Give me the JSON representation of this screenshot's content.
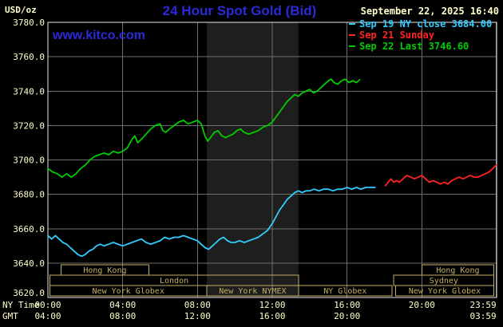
{
  "header": {
    "unit": "USD/oz",
    "title": "24 Hour Spot Gold (Bid)",
    "datetime": "September 22, 2025 16:40",
    "watermark": "www.kitco.com"
  },
  "legend": {
    "items": [
      {
        "label": "Sep 19 NY close 3684.00",
        "color": "#33ccff"
      },
      {
        "label": "Sep 21 Sunday",
        "color": "#ff2222"
      },
      {
        "label": "Sep 22 Last 3746.60",
        "color": "#00cc00"
      }
    ]
  },
  "colors": {
    "background": "#000000",
    "title": "#2a2ad8",
    "datetime_text": "#ffffcc",
    "axis_text": "#ffffcc",
    "grid": "#6f6f6f",
    "plot_border": "#e8e8e8",
    "band": "#1e1e1e",
    "session": "#c3af62"
  },
  "chart_data": {
    "type": "line",
    "title": "24 Hour Spot Gold (Bid)",
    "y_unit": "USD/oz",
    "xlim": [
      0,
      24
    ],
    "ylim": [
      3620,
      3780
    ],
    "y_gridline_step": 20,
    "x_gridline_step_hours": 4,
    "y_ticks": [
      3620,
      3640,
      3660,
      3680,
      3700,
      3720,
      3740,
      3760,
      3780
    ],
    "x_axis_row_labels": {
      "ny": "NY Time",
      "gmt": "GMT"
    },
    "x_ticks": [
      {
        "hour": 0,
        "ny": "00:00",
        "gmt": "04:00"
      },
      {
        "hour": 4,
        "ny": "04:00",
        "gmt": "08:00"
      },
      {
        "hour": 8,
        "ny": "08:00",
        "gmt": "12:00"
      },
      {
        "hour": 12,
        "ny": "12:00",
        "gmt": "16:00"
      },
      {
        "hour": 16,
        "ny": "16:00",
        "gmt": "20:00"
      },
      {
        "hour": 20,
        "ny": "20:00",
        "gmt": ""
      },
      {
        "hour": 23.983,
        "ny": "23:59",
        "gmt": "03:59",
        "anchor": "end"
      }
    ],
    "nymex_band_hours": [
      8.5,
      13.4
    ],
    "series": [
      {
        "id": "sep19",
        "name": "Sep 19 NY close",
        "close": 3684.0,
        "color": "#33ccff",
        "points": [
          [
            0,
            3656
          ],
          [
            0.2,
            3654
          ],
          [
            0.4,
            3656
          ],
          [
            0.6,
            3654
          ],
          [
            0.8,
            3652
          ],
          [
            1,
            3651
          ],
          [
            1.2,
            3649
          ],
          [
            1.4,
            3647
          ],
          [
            1.6,
            3645
          ],
          [
            1.8,
            3644
          ],
          [
            2,
            3645
          ],
          [
            2.2,
            3647
          ],
          [
            2.4,
            3648
          ],
          [
            2.6,
            3650
          ],
          [
            2.8,
            3651
          ],
          [
            3,
            3650
          ],
          [
            3.25,
            3651
          ],
          [
            3.5,
            3652
          ],
          [
            3.75,
            3651
          ],
          [
            4,
            3650
          ],
          [
            4.25,
            3651
          ],
          [
            4.5,
            3652
          ],
          [
            4.75,
            3653
          ],
          [
            5,
            3654
          ],
          [
            5.25,
            3652
          ],
          [
            5.5,
            3651
          ],
          [
            5.75,
            3652
          ],
          [
            6,
            3653
          ],
          [
            6.25,
            3655
          ],
          [
            6.5,
            3654
          ],
          [
            6.75,
            3655
          ],
          [
            7,
            3655
          ],
          [
            7.25,
            3656
          ],
          [
            7.5,
            3655
          ],
          [
            7.75,
            3654
          ],
          [
            8,
            3653
          ],
          [
            8.2,
            3651
          ],
          [
            8.4,
            3649
          ],
          [
            8.6,
            3648
          ],
          [
            8.8,
            3650
          ],
          [
            9,
            3652
          ],
          [
            9.2,
            3654
          ],
          [
            9.4,
            3655
          ],
          [
            9.6,
            3653
          ],
          [
            9.8,
            3652
          ],
          [
            10,
            3652
          ],
          [
            10.25,
            3653
          ],
          [
            10.5,
            3652
          ],
          [
            10.75,
            3653
          ],
          [
            11,
            3654
          ],
          [
            11.25,
            3655
          ],
          [
            11.5,
            3657
          ],
          [
            11.75,
            3659
          ],
          [
            12,
            3663
          ],
          [
            12.2,
            3667
          ],
          [
            12.4,
            3671
          ],
          [
            12.6,
            3674
          ],
          [
            12.8,
            3677
          ],
          [
            13,
            3679
          ],
          [
            13.2,
            3681
          ],
          [
            13.4,
            3682
          ],
          [
            13.6,
            3681
          ],
          [
            13.8,
            3682
          ],
          [
            14,
            3682
          ],
          [
            14.25,
            3683
          ],
          [
            14.5,
            3682
          ],
          [
            14.75,
            3683
          ],
          [
            15,
            3683
          ],
          [
            15.25,
            3682
          ],
          [
            15.5,
            3683
          ],
          [
            15.75,
            3683
          ],
          [
            16,
            3684
          ],
          [
            16.25,
            3683
          ],
          [
            16.5,
            3684
          ],
          [
            16.75,
            3683
          ],
          [
            17,
            3684
          ],
          [
            17.25,
            3684
          ],
          [
            17.5,
            3684
          ]
        ]
      },
      {
        "id": "sep21",
        "name": "Sep 21 Sunday",
        "color": "#ff2222",
        "points": [
          [
            18.05,
            3685
          ],
          [
            18.2,
            3687
          ],
          [
            18.35,
            3689
          ],
          [
            18.5,
            3687
          ],
          [
            18.65,
            3688
          ],
          [
            18.8,
            3687
          ],
          [
            19,
            3689
          ],
          [
            19.2,
            3691
          ],
          [
            19.4,
            3690
          ],
          [
            19.6,
            3689
          ],
          [
            19.8,
            3690
          ],
          [
            20,
            3691
          ],
          [
            20.2,
            3689
          ],
          [
            20.4,
            3687
          ],
          [
            20.6,
            3688
          ],
          [
            20.8,
            3687
          ],
          [
            21,
            3686
          ],
          [
            21.2,
            3687
          ],
          [
            21.4,
            3686
          ],
          [
            21.6,
            3688
          ],
          [
            21.8,
            3689
          ],
          [
            22,
            3690
          ],
          [
            22.2,
            3689
          ],
          [
            22.4,
            3690
          ],
          [
            22.6,
            3691
          ],
          [
            22.8,
            3690
          ],
          [
            23,
            3690
          ],
          [
            23.2,
            3691
          ],
          [
            23.4,
            3692
          ],
          [
            23.6,
            3693
          ],
          [
            23.8,
            3695
          ],
          [
            23.98,
            3697
          ]
        ]
      },
      {
        "id": "sep22",
        "name": "Sep 22",
        "last": 3746.6,
        "color": "#00cc00",
        "points": [
          [
            0,
            3695
          ],
          [
            0.25,
            3693
          ],
          [
            0.5,
            3692
          ],
          [
            0.75,
            3690
          ],
          [
            1,
            3692
          ],
          [
            1.25,
            3690
          ],
          [
            1.5,
            3692
          ],
          [
            1.75,
            3695
          ],
          [
            2,
            3697
          ],
          [
            2.25,
            3700
          ],
          [
            2.5,
            3702
          ],
          [
            2.75,
            3703
          ],
          [
            3,
            3704
          ],
          [
            3.25,
            3703
          ],
          [
            3.5,
            3705
          ],
          [
            3.75,
            3704
          ],
          [
            4,
            3705
          ],
          [
            4.25,
            3707
          ],
          [
            4.5,
            3712
          ],
          [
            4.65,
            3714
          ],
          [
            4.8,
            3710
          ],
          [
            5,
            3712
          ],
          [
            5.25,
            3715
          ],
          [
            5.5,
            3718
          ],
          [
            5.75,
            3720
          ],
          [
            6,
            3721
          ],
          [
            6.15,
            3717
          ],
          [
            6.3,
            3716
          ],
          [
            6.5,
            3718
          ],
          [
            6.75,
            3720
          ],
          [
            7,
            3722
          ],
          [
            7.25,
            3723
          ],
          [
            7.5,
            3721
          ],
          [
            7.75,
            3722
          ],
          [
            8,
            3723
          ],
          [
            8.2,
            3721
          ],
          [
            8.4,
            3714
          ],
          [
            8.55,
            3711
          ],
          [
            8.7,
            3713
          ],
          [
            8.9,
            3716
          ],
          [
            9.1,
            3717
          ],
          [
            9.3,
            3714
          ],
          [
            9.5,
            3713
          ],
          [
            9.7,
            3714
          ],
          [
            9.9,
            3715
          ],
          [
            10.1,
            3717
          ],
          [
            10.3,
            3718
          ],
          [
            10.5,
            3716
          ],
          [
            10.75,
            3715
          ],
          [
            11,
            3716
          ],
          [
            11.25,
            3717
          ],
          [
            11.5,
            3719
          ],
          [
            11.75,
            3720
          ],
          [
            12,
            3722
          ],
          [
            12.2,
            3725
          ],
          [
            12.4,
            3728
          ],
          [
            12.6,
            3731
          ],
          [
            12.8,
            3734
          ],
          [
            13,
            3736
          ],
          [
            13.2,
            3738
          ],
          [
            13.4,
            3737
          ],
          [
            13.6,
            3739
          ],
          [
            13.8,
            3740
          ],
          [
            14,
            3741
          ],
          [
            14.2,
            3739
          ],
          [
            14.4,
            3740
          ],
          [
            14.6,
            3742
          ],
          [
            14.8,
            3744
          ],
          [
            15,
            3746
          ],
          [
            15.15,
            3747
          ],
          [
            15.3,
            3745
          ],
          [
            15.5,
            3744
          ],
          [
            15.7,
            3746
          ],
          [
            15.9,
            3747
          ],
          [
            16.1,
            3745
          ],
          [
            16.3,
            3746
          ],
          [
            16.5,
            3745
          ],
          [
            16.67,
            3746.6
          ]
        ]
      }
    ],
    "sessions": [
      {
        "row": 0,
        "label": "Hong Kong",
        "start_hour": 0.7,
        "end_hour": 5.4
      },
      {
        "row": 0,
        "label": "Hong Kong",
        "start_hour": 20.0,
        "end_hour": 23.85
      },
      {
        "row": 1,
        "label": "London",
        "start_hour": 0.1,
        "end_hour": 13.4
      },
      {
        "row": 1,
        "label": "Sydney",
        "start_hour": 18.5,
        "end_hour": 23.85
      },
      {
        "row": 2,
        "label": "New York Globex",
        "start_hour": 0.1,
        "end_hour": 8.5
      },
      {
        "row": 2,
        "label": "New York NYMEX",
        "start_hour": 8.5,
        "end_hour": 13.4
      },
      {
        "row": 2,
        "label": "NY Globex",
        "start_hour": 13.4,
        "end_hour": 18.4
      },
      {
        "row": 2,
        "label": "New York Globex",
        "start_hour": 18.6,
        "end_hour": 23.85
      }
    ]
  }
}
